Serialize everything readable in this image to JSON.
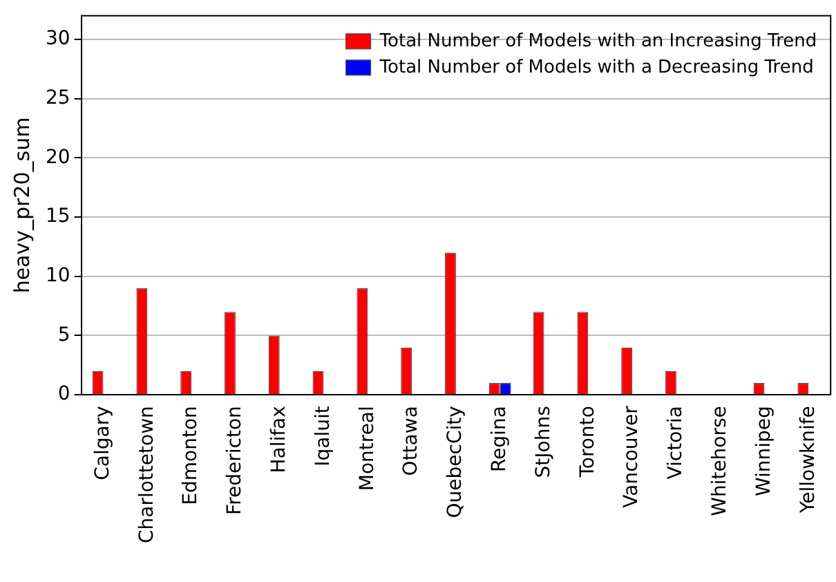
{
  "chart_data": {
    "type": "bar",
    "ylabel": "heavy_pr20_sum",
    "categories": [
      "Calgary",
      "Charlottetown",
      "Edmonton",
      "Fredericton",
      "Halifax",
      "Iqaluit",
      "Montreal",
      "Ottawa",
      "QuebecCity",
      "Regina",
      "StJohns",
      "Toronto",
      "Vancouver",
      "Victoria",
      "Whitehorse",
      "Winnipeg",
      "Yellowknife"
    ],
    "series": [
      {
        "name": "Total Number of Models with an Increasing Trend",
        "color": "#ff0000",
        "values": [
          2,
          9,
          2,
          7,
          5,
          2,
          9,
          4,
          12,
          1,
          7,
          7,
          4,
          2,
          0,
          1,
          1
        ]
      },
      {
        "name": "Total Number of Models with a Decreasing Trend",
        "color": "#0000ff",
        "values": [
          0,
          0,
          0,
          0,
          0,
          0,
          0,
          0,
          0,
          1,
          0,
          0,
          0,
          0,
          0,
          0,
          0
        ]
      }
    ],
    "ylim": [
      0,
      32
    ],
    "yticks": [
      0,
      5,
      10,
      15,
      20,
      25,
      30
    ],
    "grid": "y",
    "legend": "top right"
  }
}
